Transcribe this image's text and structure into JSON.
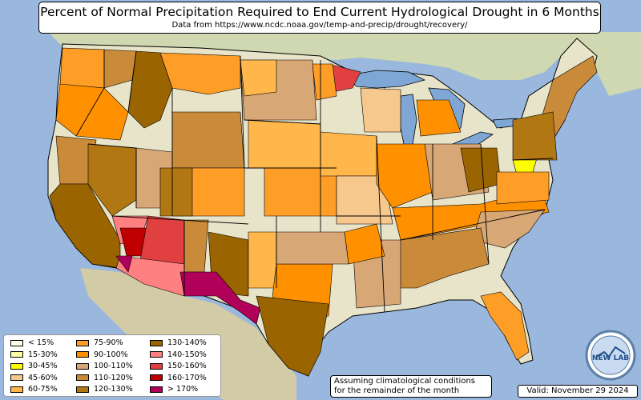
{
  "title": "Percent of Normal Precipitation Required to End Current Hydrological Drought in 6 Months",
  "subtitle": "Data from https://www.ncdc.noaa.gov/temp-and-precip/drought/recovery/",
  "assumption_note": [
    "Assuming climatological conditions",
    "for the remainder of the month"
  ],
  "valid_date": "Valid: November 29 2024",
  "logo_text": "NEW LAB",
  "colors": {
    "ocean": "#9ab7dd",
    "land": "#e7e4c9",
    "land_alt": "#d6dcb5",
    "lakes": "#7ea7d6"
  },
  "legend": [
    {
      "label": "< 15%",
      "color": "#ffffe6"
    },
    {
      "label": "15-30%",
      "color": "#ffffa8"
    },
    {
      "label": "30-45%",
      "color": "#ffff00"
    },
    {
      "label": "45-60%",
      "color": "#f6c88d"
    },
    {
      "label": "60-75%",
      "color": "#ffb74c"
    },
    {
      "label": "75-90%",
      "color": "#ff9e27"
    },
    {
      "label": "90-100%",
      "color": "#ff9100"
    },
    {
      "label": "100-110%",
      "color": "#d8a776"
    },
    {
      "label": "110-120%",
      "color": "#c98a3a"
    },
    {
      "label": "120-130%",
      "color": "#b07712"
    },
    {
      "label": "130-140%",
      "color": "#9a6400"
    },
    {
      "label": "140-150%",
      "color": "#ff8080"
    },
    {
      "label": "150-160%",
      "color": "#e04040"
    },
    {
      "label": "160-170%",
      "color": "#c00000"
    },
    {
      "label": "> 170%",
      "color": "#b0005a"
    }
  ]
}
